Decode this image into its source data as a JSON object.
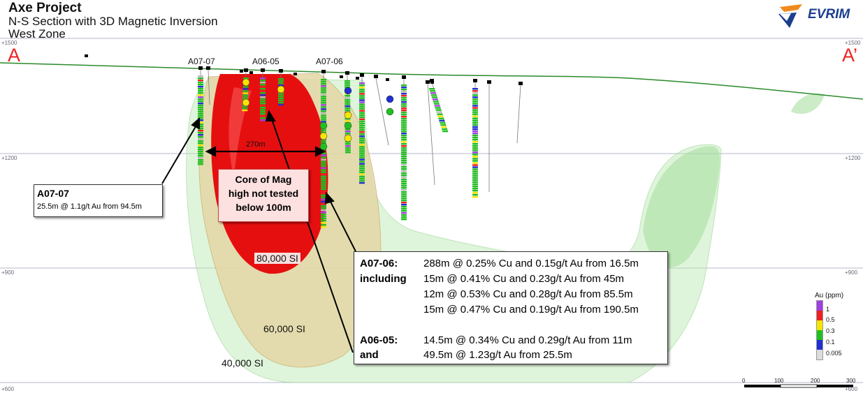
{
  "title": "Axe Project",
  "subtitle": "N-S Section with 3D Magnetic Inversion",
  "zone": "West Zone",
  "logo": {
    "name": "EVRIM",
    "color": "#1b3f8f"
  },
  "section": {
    "start": "A",
    "end": "A’"
  },
  "elevations": [
    "+1500",
    "+1200",
    "+900",
    "+600"
  ],
  "holes": [
    "A07-07",
    "A06-05",
    "A07-06"
  ],
  "width_label": "270m",
  "core_callout": {
    "lines": [
      "Core of Mag",
      "high not tested",
      "below 100m"
    ]
  },
  "contours": [
    "80,000 SI",
    "60,000 SI",
    "40,000 SI"
  ],
  "callout_a0707": {
    "hole": "A07-07",
    "text": "25.5m @ 1.1g/t Au from 94.5m"
  },
  "callout_main": {
    "rows": [
      {
        "hole": "A07-06:",
        "text": "288m @ 0.25% Cu and 0.15g/t Au from 16.5m"
      },
      {
        "hole": "including",
        "text": "15m @ 0.41% Cu and 0.23g/t Au from 45m"
      },
      {
        "hole": "",
        "text": "12m @ 0.53% Cu and 0.28g/t Au from 85.5m"
      },
      {
        "hole": "",
        "text": "15m @ 0.47% Cu and 0.19g/t Au from 190.5m"
      },
      {
        "hole": "A06-05:",
        "text": "14.5m @ 0.34% Cu and 0.29g/t Au from 11m"
      },
      {
        "hole": "and",
        "text": "49.5m @ 1.23g/t Au from 25.5m"
      }
    ]
  },
  "legend": {
    "title": "Au (ppm)",
    "items": [
      {
        "label": "1",
        "color": "#a040e0"
      },
      {
        "label": "0.5",
        "color": "#ee2020"
      },
      {
        "label": "0.3",
        "color": "#f4e600"
      },
      {
        "label": "0.1",
        "color": "#20c020"
      },
      {
        "label": "0.005",
        "color": "#2030d0"
      }
    ],
    "bottom_color": "#dcdcdc"
  },
  "scalebar": [
    "0",
    "100",
    "200",
    "300"
  ]
}
